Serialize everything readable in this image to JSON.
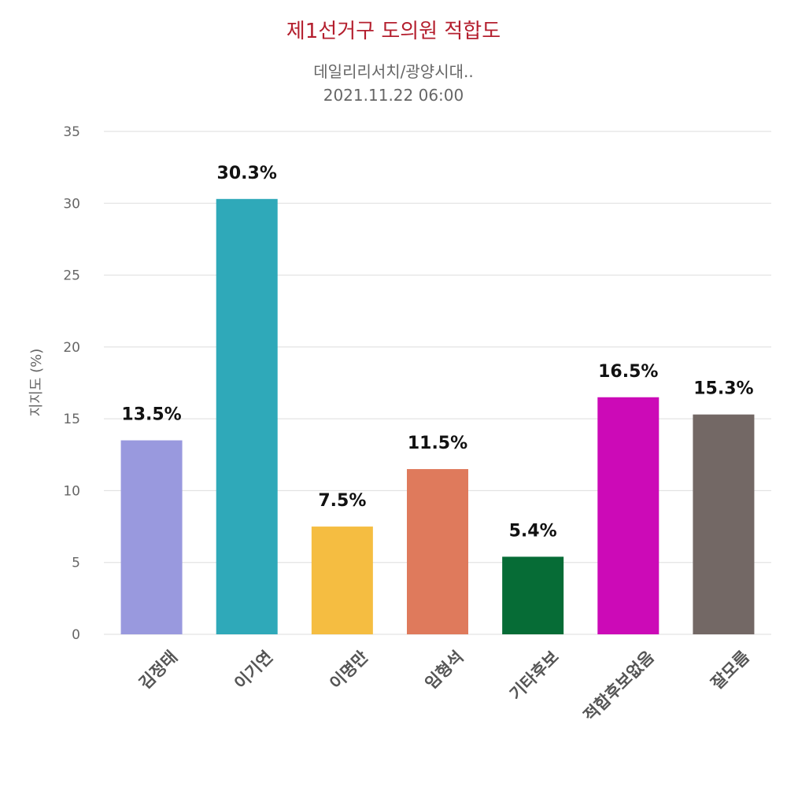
{
  "title": "제1선거구 도의원 적합도",
  "subtitle_line1": "데일리리서치/광양시대..",
  "subtitle_line2": "2021.11.22 06:00",
  "chart_data": {
    "type": "bar",
    "title": "제1선거구 도의원 적합도",
    "subtitle": "데일리리서치/광양시대.. 2021.11.22 06:00",
    "xlabel": "",
    "ylabel": "지지도 (%)",
    "ylim": [
      0,
      35
    ],
    "yticks": [
      0,
      5,
      10,
      15,
      20,
      25,
      30,
      35
    ],
    "grid": true,
    "legend": "none",
    "categories": [
      "김정태",
      "이기연",
      "이명만",
      "임형석",
      "기타후보",
      "적합후보없음",
      "잘모름"
    ],
    "values": [
      13.5,
      30.3,
      7.5,
      11.5,
      5.4,
      16.5,
      15.3
    ],
    "data_labels": [
      "13.5%",
      "30.3%",
      "7.5%",
      "11.5%",
      "5.4%",
      "16.5%",
      "15.3%"
    ],
    "colors": [
      "#9999de",
      "#2fa9b9",
      "#f5bd41",
      "#df7a5c",
      "#066c36",
      "#cc0ab7",
      "#736865"
    ]
  }
}
